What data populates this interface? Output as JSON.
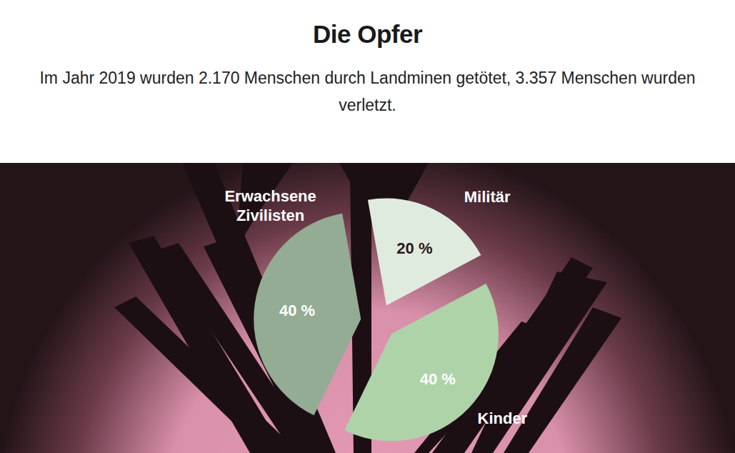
{
  "chart_data": {
    "type": "pie",
    "title": "Die Opfer",
    "subtitle": "Im Jahr 2019 wurden 2.170 Menschen durch Landminen getötet, 3.357 Menschen wurden verletzt.",
    "categories": [
      "Militär",
      "Kinder",
      "Erwachsene Zivilisten"
    ],
    "values": [
      20,
      40,
      40
    ],
    "value_labels": [
      "20 %",
      "40 %",
      "40 %"
    ],
    "colors": [
      "#e0ebe0",
      "#afd3a9",
      "#93ac93"
    ],
    "data_labels": true
  }
}
